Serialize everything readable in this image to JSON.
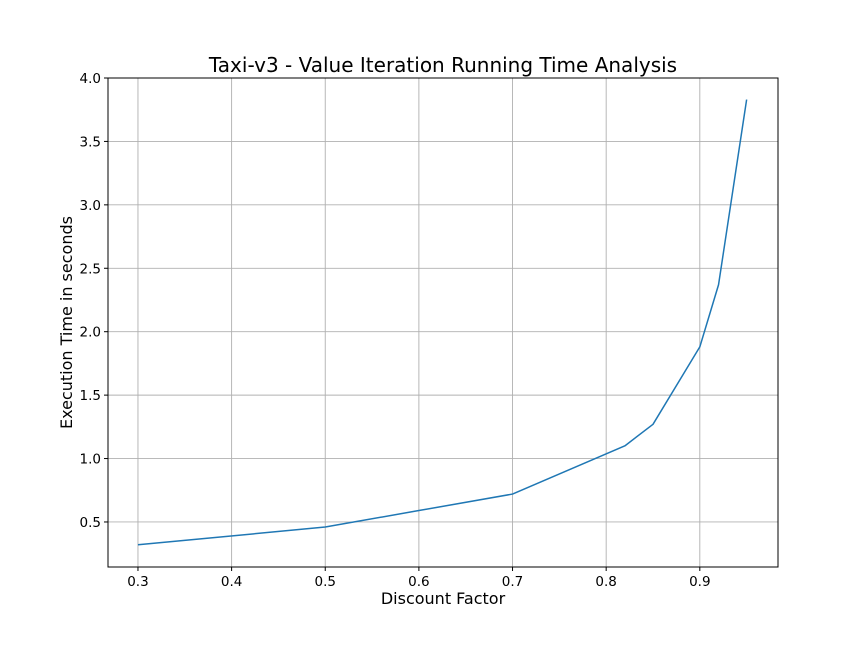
{
  "chart_data": {
    "type": "line",
    "title": "Taxi-v3 - Value Iteration Running Time Analysis",
    "xlabel": "Discount Factor",
    "ylabel": "Execution Time in seconds",
    "xlim": [
      0.268,
      0.9835
    ],
    "ylim": [
      0.145,
      4.0
    ],
    "xticks": [
      0.3,
      0.4,
      0.5,
      0.6,
      0.7,
      0.8,
      0.9
    ],
    "xtick_labels": [
      "0.3",
      "0.4",
      "0.5",
      "0.6",
      "0.7",
      "0.8",
      "0.9"
    ],
    "yticks": [
      0.5,
      1.0,
      1.5,
      2.0,
      2.5,
      3.0,
      3.5,
      4.0
    ],
    "ytick_labels": [
      "0.5",
      "1.0",
      "1.5",
      "2.0",
      "2.5",
      "3.0",
      "3.5",
      "4.0"
    ],
    "grid": true,
    "series": [
      {
        "color": "#1f77b4",
        "x": [
          0.3,
          0.5,
          0.6,
          0.7,
          0.82,
          0.85,
          0.9,
          0.92,
          0.95
        ],
        "y": [
          0.32,
          0.46,
          0.59,
          0.72,
          1.1,
          1.27,
          1.88,
          2.37,
          3.83
        ]
      }
    ]
  }
}
